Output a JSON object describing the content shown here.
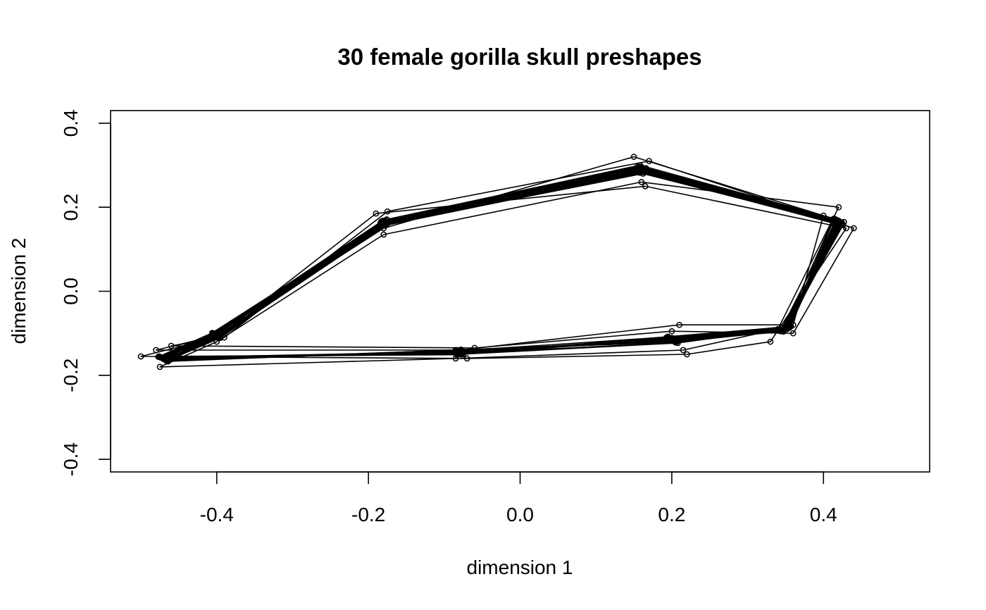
{
  "chart_data": {
    "type": "line",
    "title": "30 female gorilla skull preshapes",
    "xlabel": "dimension 1",
    "ylabel": "dimension 2",
    "xlim": [
      -0.54,
      0.54
    ],
    "ylim": [
      -0.43,
      0.43
    ],
    "xticks": [
      -0.4,
      -0.2,
      0.0,
      0.2,
      0.4
    ],
    "yticks": [
      -0.4,
      -0.2,
      0.0,
      0.2,
      0.4
    ],
    "xtick_labels": [
      "-0.4",
      "-0.2",
      "0.0",
      "0.2",
      "0.4"
    ],
    "ytick_labels": [
      "-0.4",
      "-0.2",
      "0.0",
      "0.2",
      "0.4"
    ],
    "grid": false,
    "legend": "none",
    "color": "#000000",
    "n_shapes": 30,
    "landmark_order": [
      "L1",
      "L2",
      "L3",
      "L4",
      "L5",
      "L6",
      "L7",
      "L8"
    ],
    "mean_shape": {
      "x": [
        -0.4,
        -0.18,
        0.16,
        0.42,
        0.35,
        0.2,
        -0.08,
        -0.47
      ],
      "y": [
        -0.105,
        0.16,
        0.29,
        0.165,
        -0.09,
        -0.115,
        -0.145,
        -0.16
      ]
    },
    "shapes": [
      {
        "x": [
          -0.404,
          -0.179,
          0.155,
          0.417,
          0.351,
          0.197,
          -0.081,
          -0.473
        ],
        "y": [
          -0.1,
          0.167,
          0.297,
          0.169,
          -0.086,
          -0.112,
          -0.148,
          -0.158
        ]
      },
      {
        "x": [
          -0.396,
          -0.185,
          0.164,
          0.425,
          0.346,
          0.203,
          -0.076,
          -0.467
        ],
        "y": [
          -0.109,
          0.154,
          0.283,
          0.16,
          -0.093,
          -0.119,
          -0.142,
          -0.164
        ]
      },
      {
        "x": [
          -0.401,
          -0.176,
          0.158,
          0.414,
          0.357,
          0.195,
          -0.084,
          -0.476
        ],
        "y": [
          -0.103,
          0.171,
          0.3,
          0.173,
          -0.084,
          -0.108,
          -0.151,
          -0.155
        ]
      },
      {
        "x": [
          -0.399,
          -0.183,
          0.162,
          0.422,
          0.343,
          0.206,
          -0.078,
          -0.464
        ],
        "y": [
          -0.107,
          0.157,
          0.28,
          0.162,
          -0.095,
          -0.121,
          -0.139,
          -0.167
        ]
      },
      {
        "x": [
          -0.405,
          -0.181,
          0.157,
          0.418,
          0.353,
          0.199,
          -0.08,
          -0.471
        ],
        "y": [
          -0.101,
          0.162,
          0.292,
          0.167,
          -0.088,
          -0.114,
          -0.146,
          -0.16
        ]
      },
      {
        "x": [
          -0.397,
          -0.178,
          0.163,
          0.423,
          0.348,
          0.201,
          -0.082,
          -0.469
        ],
        "y": [
          -0.11,
          0.16,
          0.288,
          0.163,
          -0.091,
          -0.116,
          -0.144,
          -0.162
        ]
      },
      {
        "x": [
          -0.402,
          -0.184,
          0.159,
          0.416,
          0.355,
          0.193,
          -0.077,
          -0.474
        ],
        "y": [
          -0.104,
          0.158,
          0.294,
          0.171,
          -0.087,
          -0.11,
          -0.149,
          -0.157
        ]
      },
      {
        "x": [
          -0.398,
          -0.177,
          0.161,
          0.421,
          0.345,
          0.207,
          -0.083,
          -0.466
        ],
        "y": [
          -0.106,
          0.166,
          0.286,
          0.159,
          -0.094,
          -0.12,
          -0.141,
          -0.166
        ]
      },
      {
        "x": [
          -0.403,
          -0.182,
          0.156,
          0.419,
          0.35,
          0.198,
          -0.079,
          -0.472
        ],
        "y": [
          -0.102,
          0.163,
          0.291,
          0.166,
          -0.089,
          -0.115,
          -0.147,
          -0.159
        ]
      },
      {
        "x": [
          -0.4,
          -0.18,
          0.165,
          0.424,
          0.352,
          0.202,
          -0.081,
          -0.468
        ],
        "y": [
          -0.108,
          0.159,
          0.289,
          0.164,
          -0.09,
          -0.117,
          -0.143,
          -0.163
        ]
      },
      {
        "x": [
          -0.406,
          -0.186,
          0.16,
          0.413,
          0.349,
          0.196,
          -0.075,
          -0.477
        ],
        "y": [
          -0.099,
          0.155,
          0.295,
          0.172,
          -0.085,
          -0.113,
          -0.15,
          -0.156
        ]
      },
      {
        "x": [
          -0.395,
          -0.175,
          0.154,
          0.426,
          0.347,
          0.204,
          -0.085,
          -0.465
        ],
        "y": [
          -0.111,
          0.169,
          0.284,
          0.158,
          -0.096,
          -0.118,
          -0.14,
          -0.165
        ]
      },
      {
        "x": [
          -0.401,
          -0.179,
          0.166,
          0.42,
          0.356,
          0.2,
          -0.08,
          -0.47
        ],
        "y": [
          -0.103,
          0.161,
          0.293,
          0.168,
          -0.083,
          -0.111,
          -0.145,
          -0.161
        ]
      },
      {
        "x": [
          -0.399,
          -0.183,
          0.153,
          0.415,
          0.344,
          0.205,
          -0.078,
          -0.473
        ],
        "y": [
          -0.107,
          0.164,
          0.287,
          0.161,
          -0.092,
          -0.122,
          -0.148,
          -0.158
        ]
      },
      {
        "x": [
          -0.404,
          -0.178,
          0.16,
          0.427,
          0.351,
          0.194,
          -0.083,
          -0.467
        ],
        "y": [
          -0.104,
          0.156,
          0.296,
          0.165,
          -0.089,
          -0.109,
          -0.142,
          -0.164
        ]
      },
      {
        "x": [
          -0.397,
          -0.181,
          0.158,
          0.412,
          0.354,
          0.208,
          -0.079,
          -0.475
        ],
        "y": [
          -0.105,
          0.168,
          0.282,
          0.17,
          -0.087,
          -0.123,
          -0.15,
          -0.157
        ]
      },
      {
        "x": [
          -0.4,
          -0.18,
          0.15,
          0.4,
          0.36,
          0.21,
          -0.08,
          -0.48
        ],
        "y": [
          -0.105,
          0.15,
          0.32,
          0.18,
          -0.08,
          -0.08,
          -0.14,
          -0.14
        ]
      },
      {
        "x": [
          -0.4,
          -0.19,
          0.165,
          0.43,
          0.33,
          0.22,
          -0.07,
          -0.5
        ],
        "y": [
          -0.11,
          0.185,
          0.25,
          0.15,
          -0.12,
          -0.15,
          -0.16,
          -0.155
        ]
      },
      {
        "x": [
          -0.39,
          -0.175,
          0.17,
          0.44,
          0.36,
          0.2,
          -0.06,
          -0.46
        ],
        "y": [
          -0.11,
          0.19,
          0.31,
          0.15,
          -0.1,
          -0.095,
          -0.135,
          -0.13
        ]
      },
      {
        "x": [
          -0.4,
          -0.18,
          0.16,
          0.42,
          0.34,
          0.215,
          -0.085,
          -0.475
        ],
        "y": [
          -0.12,
          0.135,
          0.26,
          0.2,
          -0.09,
          -0.14,
          -0.16,
          -0.18
        ]
      },
      {
        "x": [
          -0.402,
          -0.182,
          0.157,
          0.418,
          0.352,
          0.199,
          -0.081,
          -0.471
        ],
        "y": [
          -0.102,
          0.162,
          0.29,
          0.166,
          -0.088,
          -0.114,
          -0.146,
          -0.16
        ]
      },
      {
        "x": [
          -0.398,
          -0.178,
          0.163,
          0.422,
          0.348,
          0.201,
          -0.079,
          -0.469
        ],
        "y": [
          -0.108,
          0.159,
          0.289,
          0.163,
          -0.092,
          -0.116,
          -0.144,
          -0.162
        ]
      },
      {
        "x": [
          -0.403,
          -0.181,
          0.159,
          0.417,
          0.354,
          0.196,
          -0.082,
          -0.474
        ],
        "y": [
          -0.103,
          0.165,
          0.294,
          0.17,
          -0.086,
          -0.111,
          -0.149,
          -0.157
        ]
      },
      {
        "x": [
          -0.397,
          -0.179,
          0.161,
          0.423,
          0.346,
          0.204,
          -0.078,
          -0.466
        ],
        "y": [
          -0.107,
          0.157,
          0.285,
          0.16,
          -0.094,
          -0.119,
          -0.141,
          -0.165
        ]
      },
      {
        "x": [
          -0.401,
          -0.184,
          0.156,
          0.419,
          0.35,
          0.198,
          -0.08,
          -0.472
        ],
        "y": [
          -0.104,
          0.163,
          0.292,
          0.167,
          -0.089,
          -0.114,
          -0.147,
          -0.159
        ]
      },
      {
        "x": [
          -0.399,
          -0.177,
          0.164,
          0.421,
          0.349,
          0.202,
          -0.081,
          -0.468
        ],
        "y": [
          -0.106,
          0.16,
          0.288,
          0.164,
          -0.091,
          -0.117,
          -0.143,
          -0.163
        ]
      },
      {
        "x": [
          -0.404,
          -0.183,
          0.158,
          0.416,
          0.355,
          0.195,
          -0.077,
          -0.475
        ],
        "y": [
          -0.101,
          0.166,
          0.296,
          0.171,
          -0.085,
          -0.11,
          -0.15,
          -0.156
        ]
      },
      {
        "x": [
          -0.396,
          -0.176,
          0.162,
          0.424,
          0.345,
          0.205,
          -0.084,
          -0.465
        ],
        "y": [
          -0.109,
          0.158,
          0.284,
          0.159,
          -0.095,
          -0.12,
          -0.14,
          -0.166
        ]
      },
      {
        "x": [
          -0.402,
          -0.18,
          0.16,
          0.42,
          0.352,
          0.2,
          -0.079,
          -0.47
        ],
        "y": [
          -0.103,
          0.161,
          0.291,
          0.166,
          -0.088,
          -0.113,
          -0.146,
          -0.161
        ]
      },
      {
        "x": [
          -0.398,
          -0.182,
          0.157,
          0.418,
          0.347,
          0.203,
          -0.082,
          -0.473
        ],
        "y": [
          -0.107,
          0.164,
          0.287,
          0.165,
          -0.093,
          -0.118,
          -0.144,
          -0.158
        ]
      }
    ]
  }
}
